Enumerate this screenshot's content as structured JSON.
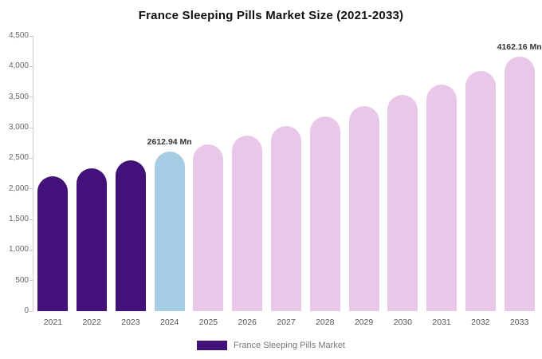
{
  "page": {
    "background": "#ffffff"
  },
  "chart_data": {
    "type": "bar",
    "title": "France Sleeping Pills Market Size (2021-2033)",
    "categories": [
      "2021",
      "2022",
      "2023",
      "2024",
      "2025",
      "2026",
      "2027",
      "2028",
      "2029",
      "2030",
      "2031",
      "2032",
      "2033"
    ],
    "values": [
      2200,
      2330,
      2460,
      2612.94,
      2730,
      2870,
      3030,
      3180,
      3350,
      3530,
      3710,
      3930,
      4162.16
    ],
    "bar_colors": [
      "#42117a",
      "#42117a",
      "#42117a",
      "#a6cde4",
      "#e8c7e9",
      "#e8c7e9",
      "#e8c7e9",
      "#e8c7e9",
      "#e8c7e9",
      "#e8c7e9",
      "#e8c7e9",
      "#e8c7e9",
      "#e8c7e9"
    ],
    "point_labels": {
      "3": "2612.94 Mn",
      "12": "4162.16 Mn"
    },
    "xlabel": "",
    "ylabel": "",
    "ylim": [
      0,
      4500
    ],
    "y_ticks": [
      0,
      500,
      1000,
      1500,
      2000,
      2500,
      3000,
      3500,
      4000,
      4500
    ],
    "y_tick_labels": [
      "0",
      "500",
      "1,000",
      "1,500",
      "2,000",
      "2,500",
      "3,000",
      "3,500",
      "4,000",
      "4,500"
    ],
    "grid": "off",
    "legend": {
      "label": "France Sleeping Pills Market",
      "swatch_color": "#42117a",
      "position": "bottom"
    },
    "colors": {
      "historical_bar": "#42117a",
      "highlight_bar": "#a6cde4",
      "forecast_bar": "#e8c7e9",
      "axis": "#cccccc",
      "tick_text": "#666666",
      "label_text": "#333333"
    }
  }
}
